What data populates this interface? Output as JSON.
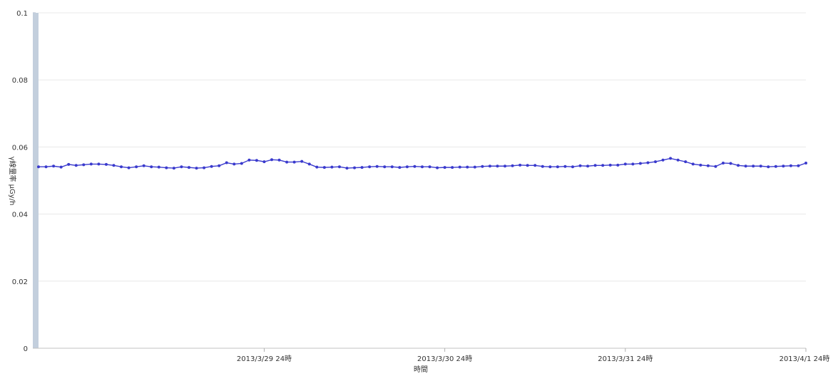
{
  "chart_data": {
    "type": "line",
    "title": "",
    "xlabel": "時間",
    "ylabel": "γ線量率 μGy/h",
    "ylim": [
      0,
      0.1
    ],
    "yticks": [
      0,
      0.02,
      0.04,
      0.06,
      0.08,
      0.1
    ],
    "ytick_labels": [
      "0",
      "0.02",
      "0.04",
      "0.06",
      "0.08",
      "0.1"
    ],
    "xlim": [
      "2013/3/28 14時",
      "2013/4/1 24時"
    ],
    "xticks": [
      "2013/3/29 24時",
      "2013/3/30 24時",
      "2013/3/31 24時",
      "2013/4/1 24時"
    ],
    "grid": "horizontal",
    "legend": "none",
    "colors": {
      "line": "#3a3acd",
      "grid": "#e8e8e8",
      "axis_band": "#c3cfdd"
    },
    "series": [
      {
        "interval": "1 hour",
        "values": [
          0.0541,
          0.0541,
          0.0543,
          0.054,
          0.0548,
          0.0545,
          0.0547,
          0.0549,
          0.0549,
          0.0548,
          0.0545,
          0.0541,
          0.0538,
          0.0541,
          0.0544,
          0.0541,
          0.054,
          0.0538,
          0.0537,
          0.0541,
          0.0539,
          0.0537,
          0.0538,
          0.0542,
          0.0544,
          0.0553,
          0.0549,
          0.0551,
          0.0561,
          0.056,
          0.0556,
          0.0562,
          0.0561,
          0.0555,
          0.0555,
          0.0557,
          0.0549,
          0.054,
          0.0539,
          0.054,
          0.0541,
          0.0537,
          0.0538,
          0.0539,
          0.0541,
          0.0542,
          0.0541,
          0.0541,
          0.0539,
          0.0541,
          0.0542,
          0.0541,
          0.0541,
          0.0538,
          0.0539,
          0.0539,
          0.054,
          0.054,
          0.054,
          0.0542,
          0.0543,
          0.0543,
          0.0543,
          0.0544,
          0.0546,
          0.0545,
          0.0545,
          0.0542,
          0.0541,
          0.0541,
          0.0542,
          0.0541,
          0.0544,
          0.0543,
          0.0545,
          0.0545,
          0.0546,
          0.0546,
          0.0549,
          0.0549,
          0.0551,
          0.0553,
          0.0556,
          0.0561,
          0.0566,
          0.0561,
          0.0556,
          0.0549,
          0.0546,
          0.0544,
          0.0542,
          0.0552,
          0.0551,
          0.0545,
          0.0543,
          0.0543,
          0.0543,
          0.0541,
          0.0542,
          0.0543,
          0.0544,
          0.0544,
          0.0552
        ]
      }
    ]
  }
}
